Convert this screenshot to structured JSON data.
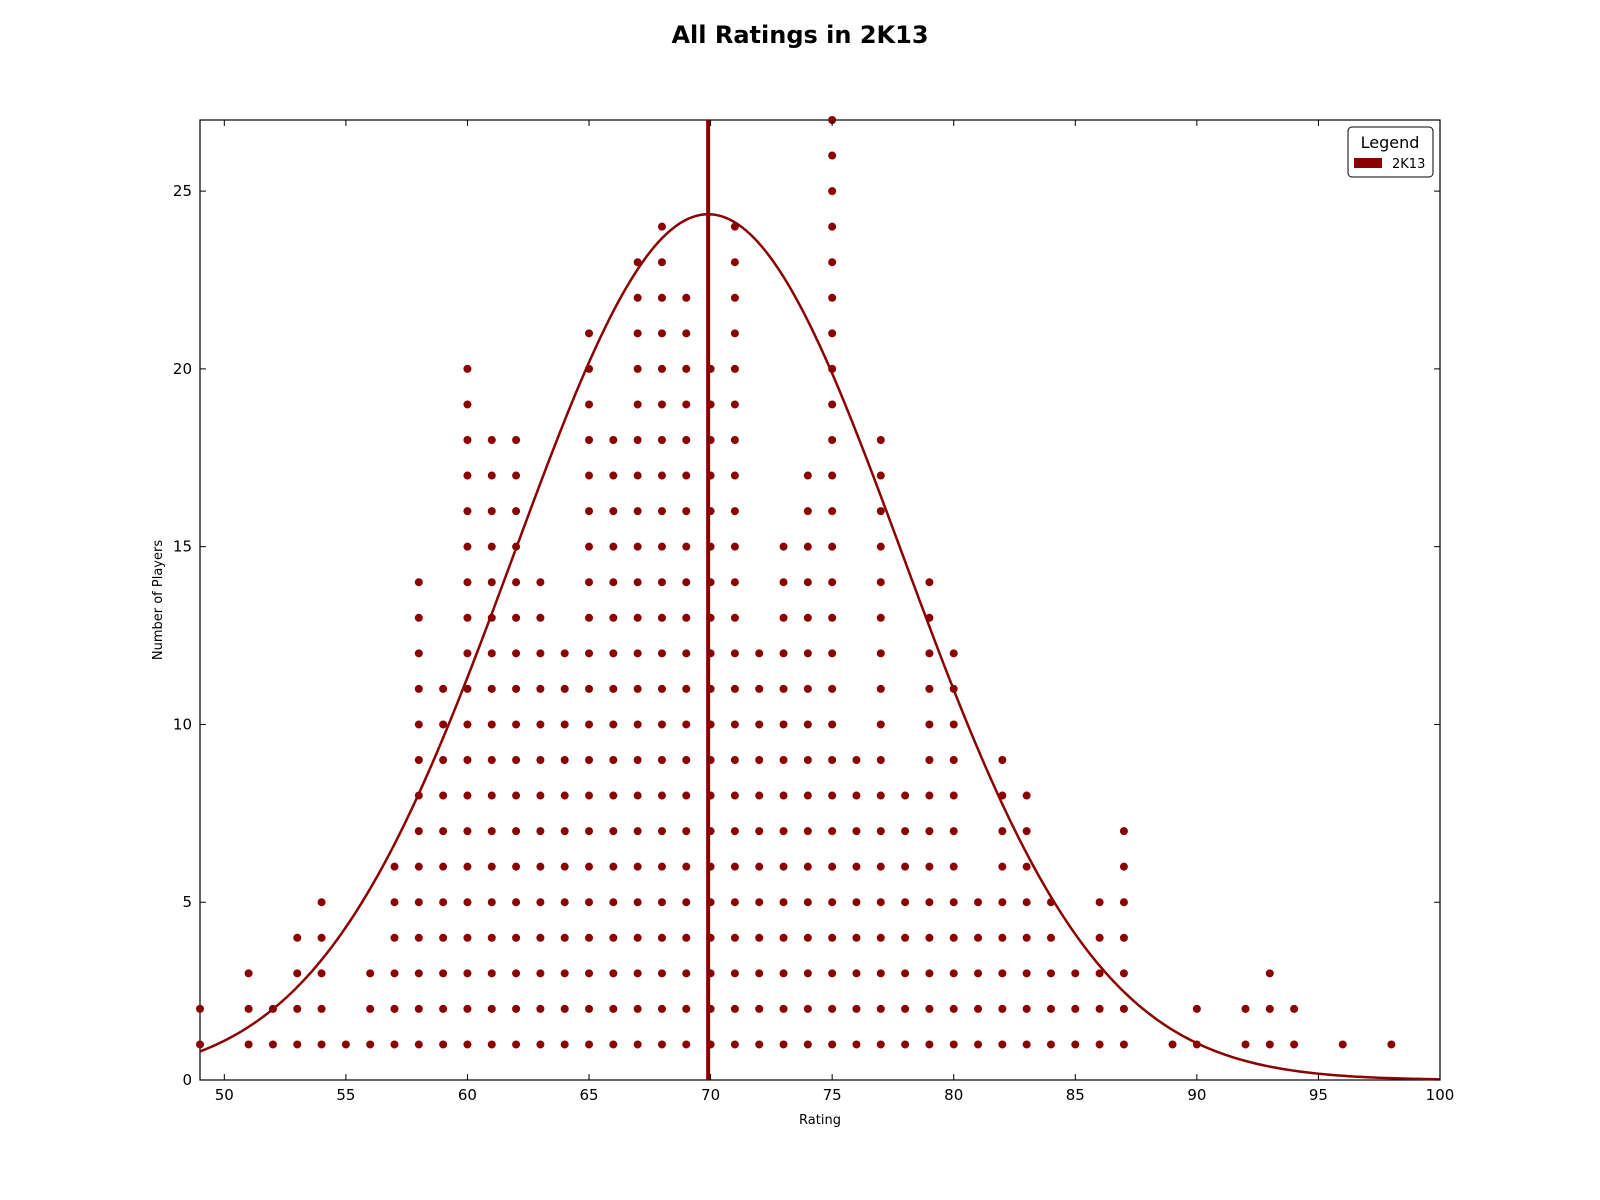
{
  "chart_data": {
    "type": "scatter",
    "title": "All Ratings in 2K13",
    "xlabel": "Rating",
    "ylabel": "Number of Players",
    "xlim": [
      49,
      100
    ],
    "ylim": [
      0,
      27
    ],
    "xticks": [
      50,
      55,
      60,
      65,
      70,
      75,
      80,
      85,
      90,
      95,
      100
    ],
    "yticks": [
      0,
      5,
      10,
      15,
      20,
      25
    ],
    "grid": false,
    "legend": {
      "title": "Legend",
      "placement": "top-right",
      "entries": [
        "2K13"
      ]
    },
    "color": "#8b0000",
    "series": [
      {
        "name": "2K13",
        "column_counts": [
          {
            "x": 49,
            "count": 2
          },
          {
            "x": 51,
            "count": 3
          },
          {
            "x": 52,
            "count": 2
          },
          {
            "x": 53,
            "count": 4
          },
          {
            "x": 54,
            "count": 5
          },
          {
            "x": 55,
            "count": 1
          },
          {
            "x": 56,
            "count": 3
          },
          {
            "x": 57,
            "count": 6
          },
          {
            "x": 58,
            "count": 14
          },
          {
            "x": 59,
            "count": 11
          },
          {
            "x": 60,
            "count": 20
          },
          {
            "x": 61,
            "count": 18
          },
          {
            "x": 62,
            "count": 18
          },
          {
            "x": 63,
            "count": 14
          },
          {
            "x": 64,
            "count": 12
          },
          {
            "x": 65,
            "count": 21
          },
          {
            "x": 66,
            "count": 18
          },
          {
            "x": 67,
            "count": 23
          },
          {
            "x": 68,
            "count": 24
          },
          {
            "x": 69,
            "count": 22
          },
          {
            "x": 70,
            "count": 20
          },
          {
            "x": 71,
            "count": 24
          },
          {
            "x": 72,
            "count": 12
          },
          {
            "x": 73,
            "count": 15
          },
          {
            "x": 74,
            "count": 17
          },
          {
            "x": 75,
            "count": 27
          },
          {
            "x": 76,
            "count": 9
          },
          {
            "x": 77,
            "count": 18
          },
          {
            "x": 78,
            "count": 8
          },
          {
            "x": 79,
            "count": 14
          },
          {
            "x": 80,
            "count": 12
          },
          {
            "x": 81,
            "count": 5
          },
          {
            "x": 82,
            "count": 9
          },
          {
            "x": 83,
            "count": 8
          },
          {
            "x": 84,
            "count": 5
          },
          {
            "x": 85,
            "count": 3
          },
          {
            "x": 86,
            "count": 5
          },
          {
            "x": 87,
            "count": 7
          },
          {
            "x": 89,
            "count": 1
          },
          {
            "x": 90,
            "count": 2
          },
          {
            "x": 92,
            "count": 2
          },
          {
            "x": 93,
            "count": 3
          },
          {
            "x": 94,
            "count": 2
          },
          {
            "x": 96,
            "count": 1
          },
          {
            "x": 98,
            "count": 1
          }
        ]
      }
    ],
    "mean_line": {
      "x": 69.9
    },
    "normal_curve": {
      "mean": 69.9,
      "sd": 8.0,
      "peak": 24.35
    }
  }
}
